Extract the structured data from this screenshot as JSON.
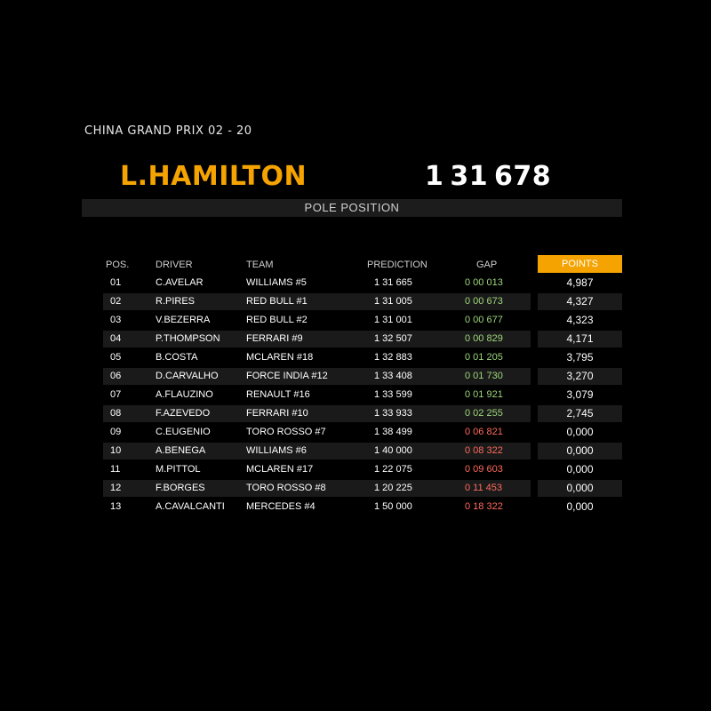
{
  "header": {
    "race_title": "CHINA GRAND PRIX 02 - 20",
    "pole_driver": "L.HAMILTON",
    "pole_time": "1 31 678",
    "pole_label": "POLE POSITION"
  },
  "table": {
    "columns": {
      "pos": "POS.",
      "driver": "DRIVER",
      "team": "TEAM",
      "prediction": "PREDICTION",
      "gap": "GAP",
      "points": "POINTS"
    },
    "rows": [
      {
        "pos": "01",
        "driver": "C.AVELAR",
        "team": "WILLIAMS #5",
        "prediction": "1 31 665",
        "gap": "0 00 013",
        "gap_status": "good",
        "points": "4,987"
      },
      {
        "pos": "02",
        "driver": "R.PIRES",
        "team": "RED BULL #1",
        "prediction": "1 31 005",
        "gap": "0 00 673",
        "gap_status": "good",
        "points": "4,327"
      },
      {
        "pos": "03",
        "driver": "V.BEZERRA",
        "team": "RED BULL #2",
        "prediction": "1 31 001",
        "gap": "0 00 677",
        "gap_status": "good",
        "points": "4,323"
      },
      {
        "pos": "04",
        "driver": "P.THOMPSON",
        "team": "FERRARI #9",
        "prediction": "1 32 507",
        "gap": "0 00 829",
        "gap_status": "good",
        "points": "4,171"
      },
      {
        "pos": "05",
        "driver": "B.COSTA",
        "team": "MCLAREN #18",
        "prediction": "1 32 883",
        "gap": "0 01 205",
        "gap_status": "good",
        "points": "3,795"
      },
      {
        "pos": "06",
        "driver": "D.CARVALHO",
        "team": "FORCE INDIA #12",
        "prediction": "1 33 408",
        "gap": "0 01 730",
        "gap_status": "good",
        "points": "3,270"
      },
      {
        "pos": "07",
        "driver": "A.FLAUZINO",
        "team": "RENAULT #16",
        "prediction": "1 33 599",
        "gap": "0 01 921",
        "gap_status": "good",
        "points": "3,079"
      },
      {
        "pos": "08",
        "driver": "F.AZEVEDO",
        "team": "FERRARI #10",
        "prediction": "1 33 933",
        "gap": "0 02 255",
        "gap_status": "good",
        "points": "2,745"
      },
      {
        "pos": "09",
        "driver": "C.EUGENIO",
        "team": "TORO ROSSO #7",
        "prediction": "1 38 499",
        "gap": "0 06 821",
        "gap_status": "bad",
        "points": "0,000"
      },
      {
        "pos": "10",
        "driver": "A.BENEGA",
        "team": "WILLIAMS #6",
        "prediction": "1 40 000",
        "gap": "0 08 322",
        "gap_status": "bad",
        "points": "0,000"
      },
      {
        "pos": "11",
        "driver": "M.PITTOL",
        "team": "MCLAREN #17",
        "prediction": "1 22 075",
        "gap": "0 09 603",
        "gap_status": "bad",
        "points": "0,000"
      },
      {
        "pos": "12",
        "driver": "F.BORGES",
        "team": "TORO ROSSO #8",
        "prediction": "1 20 225",
        "gap": "0 11 453",
        "gap_status": "bad",
        "points": "0,000"
      },
      {
        "pos": "13",
        "driver": "A.CAVALCANTI",
        "team": "MERCEDES #4",
        "prediction": "1 50 000",
        "gap": "0 18 322",
        "gap_status": "bad",
        "points": "0,000"
      }
    ]
  },
  "colors": {
    "accent": "#f5a300",
    "gap_good": "#9ed67a",
    "gap_bad": "#ff6a5c",
    "row_alt": "#1a1a1a",
    "banner": "#1c1c1c"
  }
}
